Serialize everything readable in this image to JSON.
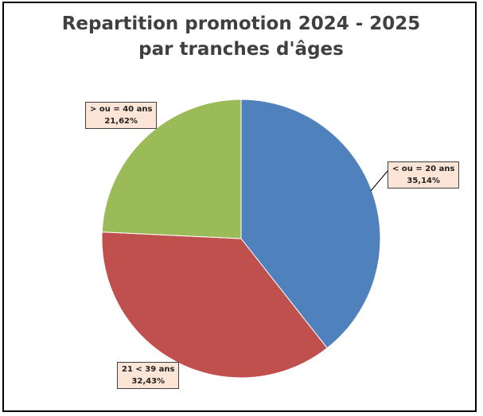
{
  "chart_data": {
    "type": "pie",
    "title": "Repartition promotion 2024 - 2025 par tranches d'âges",
    "categories": [
      "< ou = 20 ans",
      "21 < 39 ans",
      "> ou = 40 ans"
    ],
    "values": [
      35.14,
      32.43,
      21.62
    ],
    "value_labels": [
      "35,14%",
      "32,43%",
      "21,62%"
    ],
    "colors": [
      "#4f81bd",
      "#c0504d",
      "#9bbb59"
    ]
  }
}
